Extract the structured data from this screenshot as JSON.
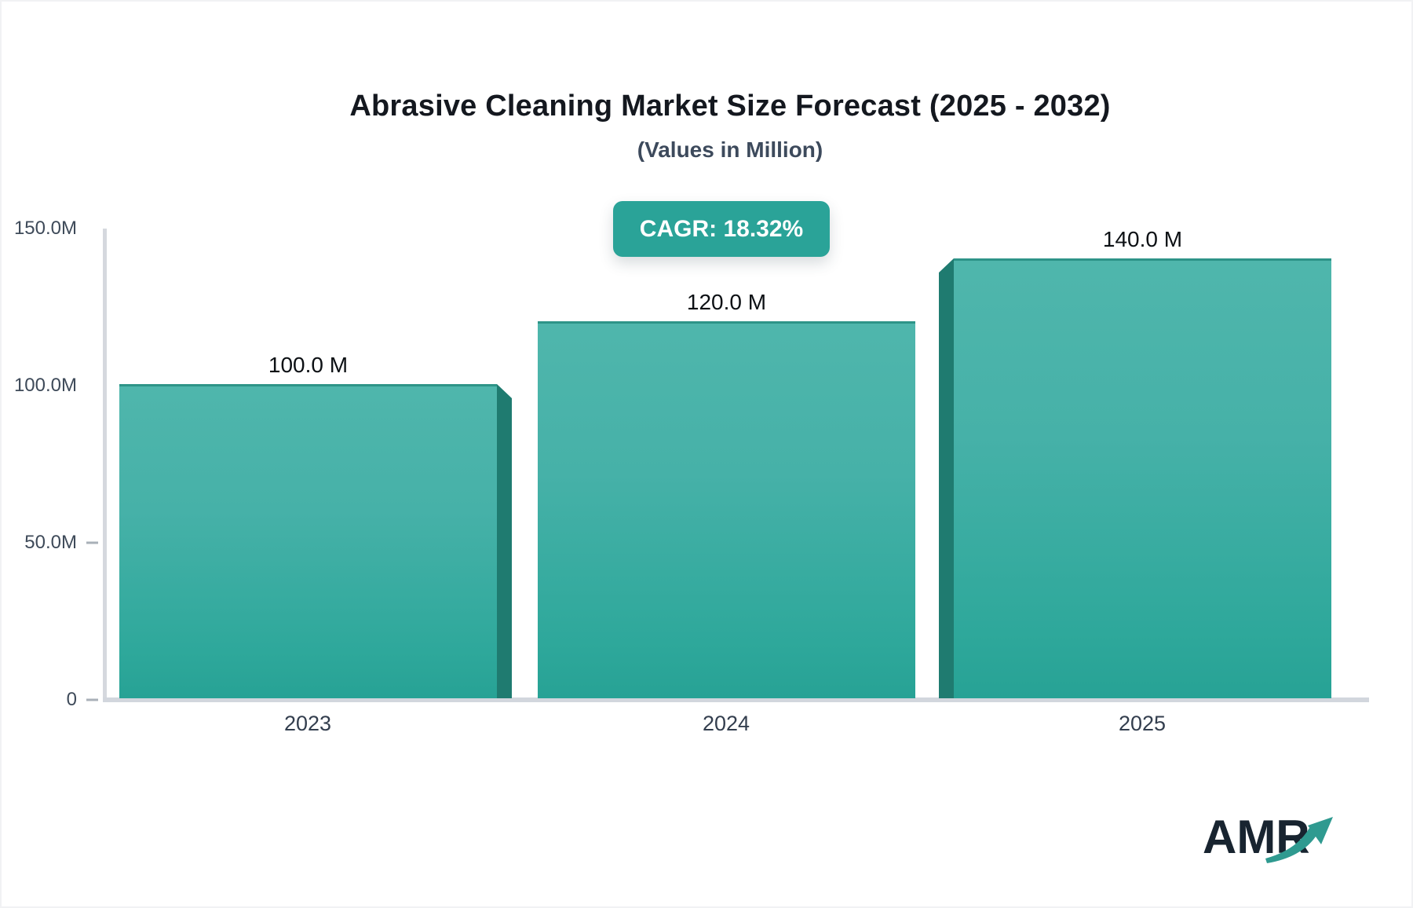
{
  "header": {
    "title": "Abrasive Cleaning Market Size Forecast (2025 - 2032)",
    "subtitle": "(Values in Million)",
    "cagr_badge": "CAGR: 18.32%"
  },
  "colors": {
    "bar_gradient_top": "#4fb6ac",
    "bar_gradient_bottom": "#27a295",
    "bar_top_edge": "#2e9488",
    "bar_3d_edge": "#1f7b70",
    "badge_background": "#2aa398",
    "badge_text": "#ffffff",
    "axis_line": "#d3d7dd",
    "tick_label": "#3e4a59",
    "value_label": "#0c1014",
    "title": "#14181f",
    "subtitle": "#3d4a5c",
    "logo_text": "#182430",
    "logo_arrow": "#2f9a90"
  },
  "chart_data": {
    "type": "bar",
    "title": "Abrasive Cleaning Market Size Forecast (2025 - 2032)",
    "subtitle": "(Values in Million)",
    "unit": "Million",
    "categories": [
      "2023",
      "2024",
      "2025"
    ],
    "values": [
      100.0,
      120.0,
      140.0
    ],
    "value_labels": [
      "100.0 M",
      "120.0 M",
      "140.0 M"
    ],
    "cagr_percent": 18.32,
    "xlabel": "",
    "ylabel": "",
    "ylim": [
      0,
      150
    ],
    "y_ticks": [
      "150.0M",
      "100.0M",
      "50.0M",
      "0"
    ],
    "y_tick_values": [
      150,
      100,
      50,
      0
    ],
    "grid": false,
    "legend_position": "none",
    "bar_style": "3d-beveled, teal gradient"
  },
  "logo": {
    "text": "AMR"
  }
}
